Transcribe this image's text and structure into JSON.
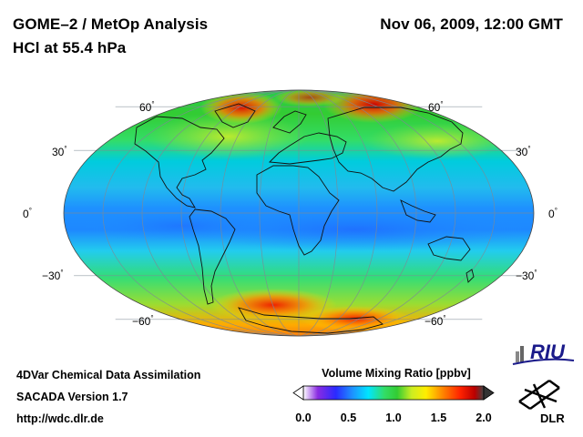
{
  "header": {
    "instrument": "GOME–2 / MetOp Analysis",
    "quantity": "HCl at 55.4 hPa",
    "datetime": "Nov 06, 2009, 12:00 GMT"
  },
  "map": {
    "projection": "Mollweide",
    "latitude_labels": [
      {
        "value": "60",
        "unit": "°"
      },
      {
        "value": "30",
        "unit": "°"
      },
      {
        "value": "0",
        "unit": "°"
      },
      {
        "value": "−30",
        "unit": "°"
      },
      {
        "value": "−60",
        "unit": "°"
      }
    ]
  },
  "colorbar": {
    "title": "Volume Mixing Ratio [ppbv]",
    "min": 0.0,
    "max": 2.0,
    "ticks": [
      "0.0",
      "0.5",
      "1.0",
      "1.5",
      "2.0"
    ],
    "colors": [
      "#ffffff",
      "#8a2be2",
      "#2a2aff",
      "#1e90ff",
      "#00e5ff",
      "#33dd66",
      "#33cc33",
      "#ccee22",
      "#ffee00",
      "#ff8800",
      "#ff2200",
      "#bb0000",
      "#444444"
    ]
  },
  "footer": {
    "line1": "4DVar Chemical Data Assimilation",
    "line2": "SACADA Version 1.7",
    "line3": "http://wdc.dlr.de"
  },
  "logos": {
    "riu": "RIU",
    "dlr": "DLR"
  }
}
